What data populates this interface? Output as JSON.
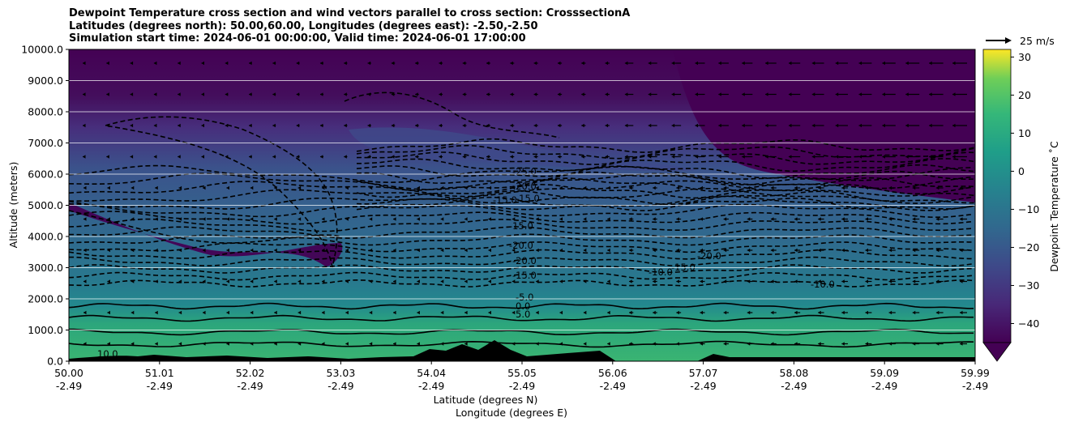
{
  "chart_data": {
    "type": "heatmap",
    "subtype": "filled-contour cross section with line contours and wind vectors",
    "title_lines": [
      "Dewpoint Temperature cross section and wind vectors parallel to cross section: CrosssectionA",
      "Latitudes (degrees north): 50.00,60.00, Longitudes (degrees east): -2.50,-2.50",
      "Simulation start time: 2024-06-01 00:00:00, Valid time: 2024-06-01 17:00:00"
    ],
    "ylabel": "Altitude (meters)",
    "xlabel_lines": [
      "Latitude (degrees N)",
      "Longitude (degrees E)"
    ],
    "ylim": [
      0,
      10000
    ],
    "y_ticks": [
      "0.0",
      "1000.0",
      "2000.0",
      "3000.0",
      "4000.0",
      "5000.0",
      "6000.0",
      "7000.0",
      "8000.0",
      "9000.0",
      "10000.0"
    ],
    "x_ticks": [
      {
        "lat": "50.00",
        "lon": "-2.49"
      },
      {
        "lat": "51.01",
        "lon": "-2.49"
      },
      {
        "lat": "52.02",
        "lon": "-2.49"
      },
      {
        "lat": "53.03",
        "lon": "-2.49"
      },
      {
        "lat": "54.04",
        "lon": "-2.49"
      },
      {
        "lat": "55.05",
        "lon": "-2.49"
      },
      {
        "lat": "56.06",
        "lon": "-2.49"
      },
      {
        "lat": "57.07",
        "lon": "-2.49"
      },
      {
        "lat": "58.08",
        "lon": "-2.49"
      },
      {
        "lat": "59.09",
        "lon": "-2.49"
      },
      {
        "lat": "59.99",
        "lon": "-2.49"
      }
    ],
    "horizontal_grid": true,
    "colorbar": {
      "label": "Dewpoint Temperature ˚C",
      "range": [
        -45,
        32
      ],
      "ticks": [
        "−40",
        "−30",
        "−20",
        "−10",
        "0",
        "10",
        "20",
        "30"
      ],
      "colormap": "viridis",
      "extend": "min"
    },
    "quiver_key": "25 m/s",
    "contour_labels": [
      "-25.0",
      "-20.0",
      "-15.0",
      "-15.0",
      "-15.0",
      "-20.0",
      "-20.0",
      "-15.0",
      "-5.0",
      "0.0",
      "5.0",
      "-10.0",
      "-15.0",
      "-20.0",
      "-10.0",
      "10.0"
    ],
    "layers": [
      {
        "alt": 0,
        "dewpoint": 11
      },
      {
        "alt": 1500,
        "dewpoint": 6
      },
      {
        "alt": 2200,
        "dewpoint": -8
      },
      {
        "alt": 3500,
        "dewpoint": -16
      },
      {
        "alt": 5000,
        "dewpoint": -22
      },
      {
        "alt": 6500,
        "dewpoint": -30
      },
      {
        "alt": 8000,
        "dewpoint": -40
      },
      {
        "alt": 10000,
        "dewpoint": -44
      }
    ]
  }
}
